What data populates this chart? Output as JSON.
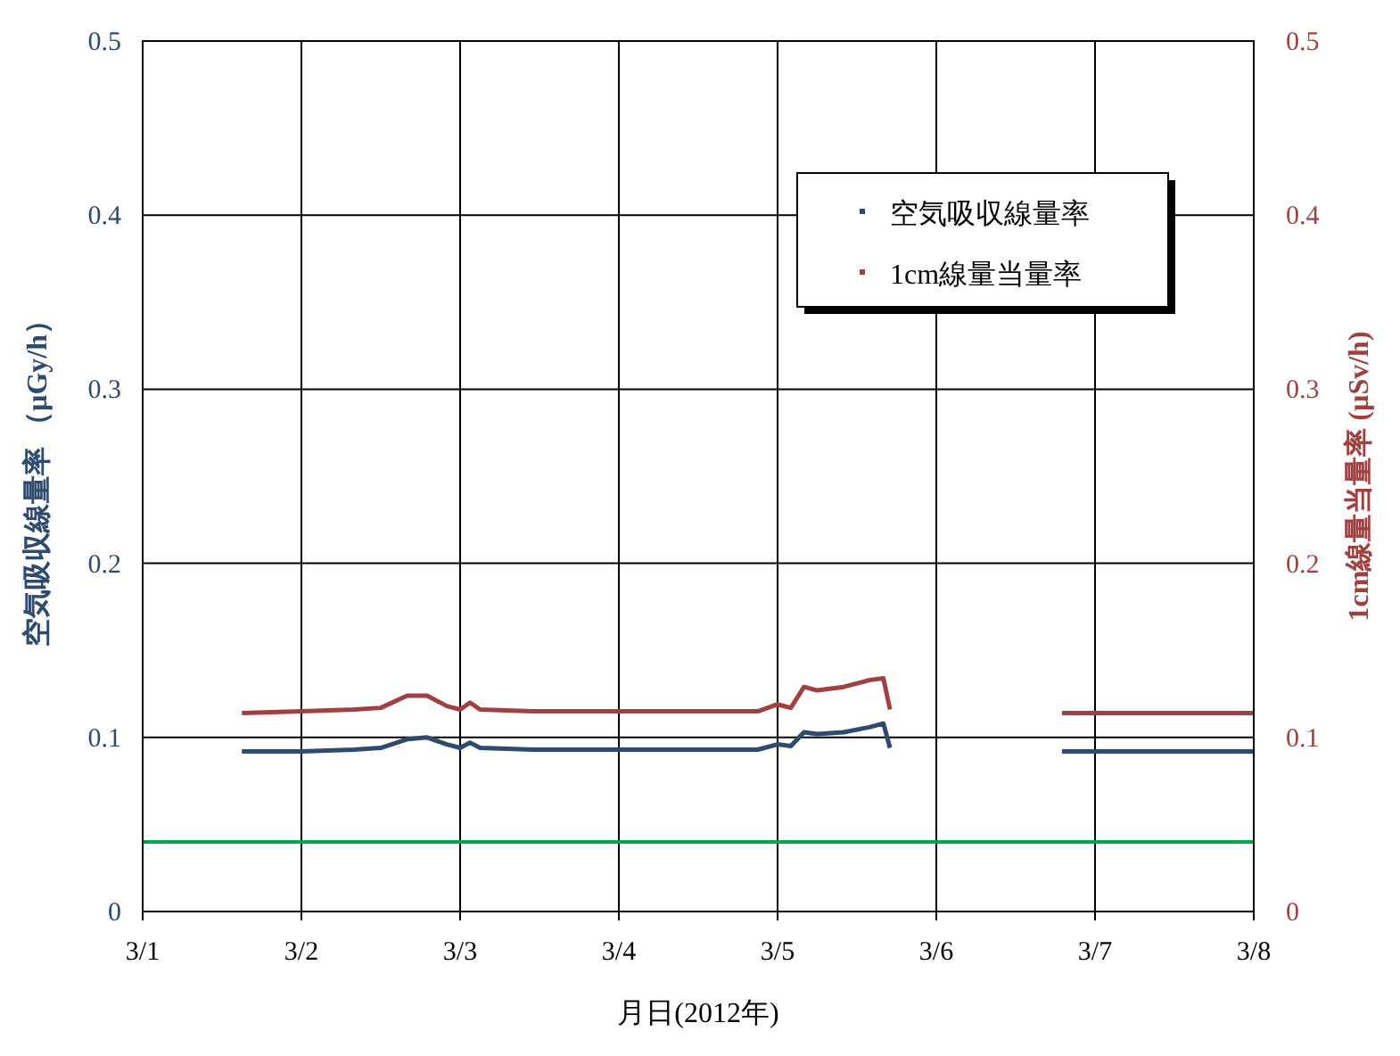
{
  "chart_data": {
    "type": "line",
    "xlabel": "月日(2012年)",
    "ylabel": "空気吸収線量率 （µGy/h）",
    "y2label": "1cm線量当量率 (µSv/h)",
    "x": [
      "2012-03-01T15:00",
      "2012-03-02T00:00",
      "2012-03-02T08:00",
      "2012-03-02T12:00",
      "2012-03-02T16:00",
      "2012-03-02T19:00",
      "2012-03-02T22:00",
      "2012-03-03T00:00",
      "2012-03-03T01:30",
      "2012-03-03T03:00",
      "2012-03-03T11:00",
      "2012-03-04T00:00",
      "2012-03-04T14:00",
      "2012-03-04T21:00",
      "2012-03-05T00:00",
      "2012-03-05T02:00",
      "2012-03-05T04:00",
      "2012-03-05T06:00",
      "2012-03-05T10:00",
      "2012-03-05T14:00",
      "2012-03-05T16:00",
      "2012-03-05T17:00"
    ],
    "series": [
      {
        "name": "空気吸収線量率",
        "color": "#2e4a6e",
        "values": [
          0.092,
          0.092,
          0.093,
          0.094,
          0.099,
          0.1,
          0.096,
          0.094,
          0.097,
          0.094,
          0.093,
          0.093,
          0.093,
          0.093,
          0.096,
          0.095,
          0.103,
          0.102,
          0.103,
          0.106,
          0.108,
          0.094
        ]
      },
      {
        "name": "1cm線量当量率",
        "color": "#a04040",
        "axis": "y2",
        "values": [
          0.114,
          0.115,
          0.116,
          0.117,
          0.124,
          0.124,
          0.118,
          0.116,
          0.12,
          0.116,
          0.115,
          0.115,
          0.115,
          0.115,
          0.119,
          0.117,
          0.129,
          0.127,
          0.129,
          0.133,
          0.134,
          0.116
        ]
      },
      {
        "color": "#2e4a6e",
        "x": [
          "2012-03-06T19:00",
          "2012-03-07T10:00",
          "2012-03-08T00:00"
        ],
        "values": [
          0.092,
          0.092,
          0.092
        ]
      },
      {
        "color": "#a04040",
        "axis": "y2",
        "x": [
          "2012-03-06T19:00",
          "2012-03-07T10:00",
          "2012-03-08T00:00"
        ],
        "values": [
          0.114,
          0.114,
          0.114
        ]
      }
    ],
    "xlim": [
      "2012-03-01",
      "2012-03-08"
    ],
    "xticks": [
      {
        "value": "2012-03-01",
        "label": "3/1"
      },
      {
        "value": "2012-03-02",
        "label": "3/2"
      },
      {
        "value": "2012-03-03",
        "label": "3/3"
      },
      {
        "value": "2012-03-04",
        "label": "3/4"
      },
      {
        "value": "2012-03-05",
        "label": "3/5"
      },
      {
        "value": "2012-03-06",
        "label": "3/6"
      },
      {
        "value": "2012-03-07",
        "label": "3/7"
      },
      {
        "value": "2012-03-08",
        "label": "3/8"
      }
    ],
    "ylim": [
      0,
      0.5
    ],
    "yticks": [
      0,
      0.1,
      0.2,
      0.3,
      0.4,
      0.5
    ],
    "y2lim": [
      0,
      0.5
    ],
    "y2ticks": [
      0,
      0.1,
      0.2,
      0.3,
      0.4,
      0.5
    ],
    "ref_lines": [
      {
        "axis": "y",
        "value": 0.04,
        "color": "#00a050"
      }
    ],
    "grid": true,
    "legend": "top right",
    "marker": "none",
    "line_style": "solid"
  }
}
